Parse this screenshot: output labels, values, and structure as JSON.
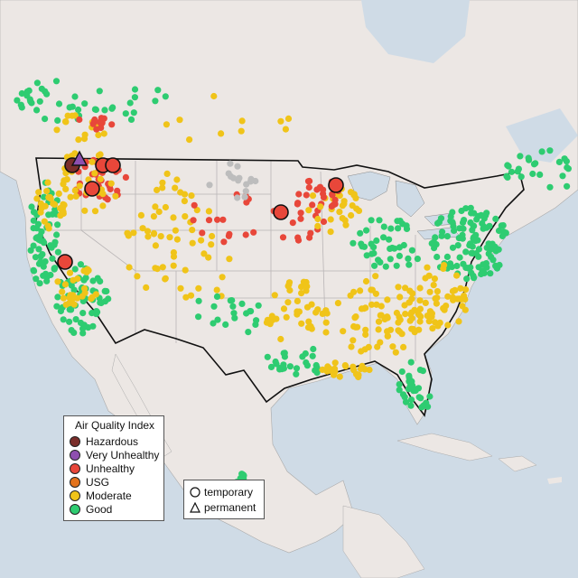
{
  "map": {
    "colors": {
      "water": "#cfdbe6",
      "land": "#ece7e4",
      "land_us": "#efe9e7",
      "state_border": "#b9b5b6",
      "country_border": "#111111"
    }
  },
  "legend": {
    "title": "Air Quality Index",
    "items": [
      {
        "label": "Hazardous",
        "color": "#7a2e2a"
      },
      {
        "label": "Very Unhealthy",
        "color": "#8e4fb0"
      },
      {
        "label": "Unhealthy",
        "color": "#e8473a"
      },
      {
        "label": "USG",
        "color": "#e3731d"
      },
      {
        "label": "Moderate",
        "color": "#f0c419"
      },
      {
        "label": "Good",
        "color": "#2ecc71"
      }
    ]
  },
  "shape_legend": {
    "items": [
      {
        "label": "temporary",
        "icon": "circle"
      },
      {
        "label": "permanent",
        "icon": "triangle"
      }
    ]
  }
}
